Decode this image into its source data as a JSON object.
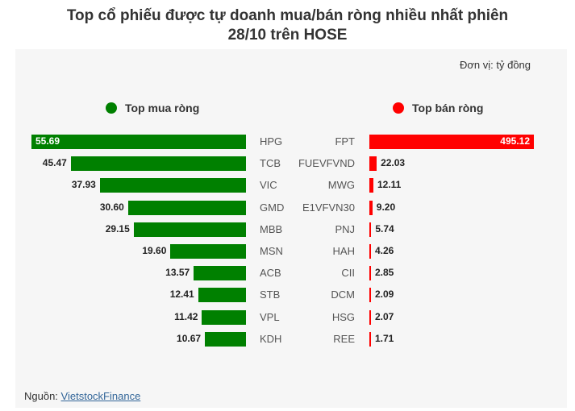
{
  "title_line1": "Top cổ phiếu được tự doanh mua/bán ròng nhiều nhất phiên",
  "title_line2": "28/10 trên HOSE",
  "unit_label": "Đơn vị: tỷ đồng",
  "source_prefix": "Nguồn: ",
  "source_link": "VietstockFinance",
  "colors": {
    "buy": "#008000",
    "sell": "#ff0000"
  },
  "chart_data": [
    {
      "type": "bar",
      "legend": "Top mua ròng",
      "categories": [
        "HPG",
        "TCB",
        "VIC",
        "GMD",
        "MBB",
        "MSN",
        "ACB",
        "STB",
        "VPL",
        "KDH"
      ],
      "values": [
        55.69,
        45.47,
        37.93,
        30.6,
        29.15,
        19.6,
        13.57,
        12.41,
        11.42,
        10.67
      ],
      "value_labels": [
        "55.69",
        "45.47",
        "37.93",
        "30.60",
        "29.15",
        "19.60",
        "13.57",
        "12.41",
        "11.42",
        "10.67"
      ]
    },
    {
      "type": "bar",
      "legend": "Top bán ròng",
      "categories": [
        "FPT",
        "FUEVFVND",
        "MWG",
        "E1VFVN30",
        "PNJ",
        "HAH",
        "CII",
        "DCM",
        "HSG",
        "REE"
      ],
      "values": [
        495.12,
        22.03,
        12.11,
        9.2,
        5.74,
        4.26,
        2.85,
        2.09,
        2.07,
        1.71
      ],
      "value_labels": [
        "495.12",
        "22.03",
        "12.11",
        "9.20",
        "5.74",
        "4.26",
        "2.85",
        "2.09",
        "2.07",
        "1.71"
      ]
    }
  ]
}
